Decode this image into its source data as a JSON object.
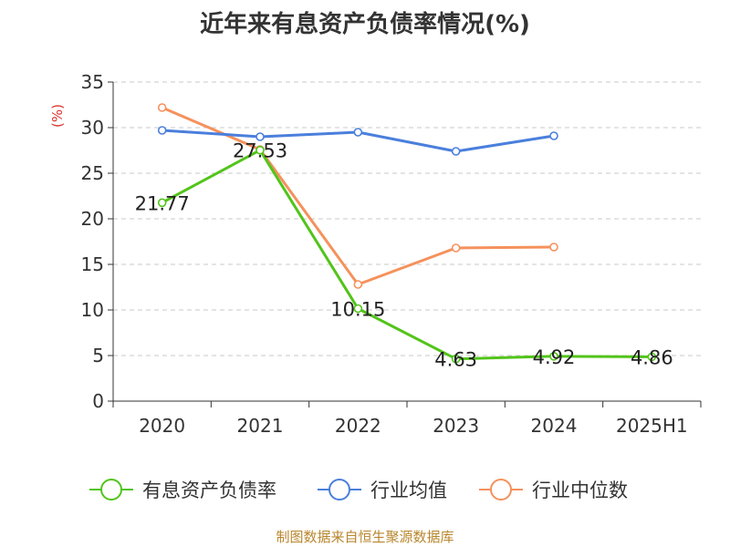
{
  "chart_data": {
    "type": "line",
    "title": "近年来有息资产负债率情况(%)",
    "ylabel": "(%)",
    "xlabel": "",
    "categories": [
      "2020",
      "2021",
      "2022",
      "2023",
      "2024",
      "2025H1"
    ],
    "ylim": [
      0,
      35
    ],
    "yticks": [
      0,
      5,
      10,
      15,
      20,
      25,
      30,
      35
    ],
    "grid": true,
    "legend_position": "bottom",
    "series": [
      {
        "name": "有息资产负债率",
        "color": "#52c41a",
        "values": [
          21.77,
          27.53,
          10.15,
          4.63,
          4.92,
          4.86
        ],
        "labels": [
          "21.77",
          "27.53",
          "10.15",
          "4.63",
          "4.92",
          "4.86"
        ]
      },
      {
        "name": "行业均值",
        "color": "#4a7fdc",
        "values": [
          29.7,
          29.0,
          29.5,
          27.4,
          29.1,
          null
        ]
      },
      {
        "name": "行业中位数",
        "color": "#f5915c",
        "values": [
          32.2,
          27.6,
          12.8,
          16.8,
          16.9,
          null
        ]
      }
    ]
  },
  "footer": {
    "source": "制图数据来自恒生聚源数据库"
  }
}
